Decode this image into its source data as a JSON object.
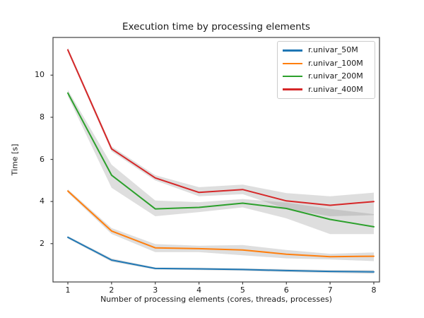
{
  "figure": {
    "background": "#ffffff",
    "spine_color": "#404040",
    "text_color": "#1a1a1a"
  },
  "chart_data": {
    "type": "line",
    "title": "Execution time by processing elements",
    "xlabel": "Number of processing elements (cores, threads, processes)",
    "ylabel": "Time [s]",
    "x": [
      1,
      2,
      3,
      4,
      5,
      6,
      7,
      8
    ],
    "xtick_labels": [
      "1",
      "2",
      "3",
      "4",
      "5",
      "6",
      "7",
      "8"
    ],
    "ytick_values": [
      2,
      4,
      6,
      8,
      10
    ],
    "ytick_labels": [
      "2",
      "4",
      "6",
      "8",
      "10"
    ],
    "xlim": [
      0.66,
      8.13
    ],
    "ylim": [
      0.18,
      11.79
    ],
    "grid": false,
    "legend": {
      "position": "upper right",
      "border_color": "#cccccc",
      "background": "#ffffff",
      "entries": [
        "r.univar_50M",
        "r.univar_100M",
        "r.univar_200M",
        "r.univar_400M"
      ]
    },
    "band": {
      "color": "#888888",
      "opacity": 0.28
    },
    "series": [
      {
        "name": "r.univar_50M",
        "color": "#1f77b4",
        "values": [
          2.3,
          1.22,
          0.82,
          0.8,
          0.77,
          0.72,
          0.68,
          0.66
        ],
        "lo": [
          2.24,
          1.14,
          0.77,
          0.74,
          0.71,
          0.65,
          0.61,
          0.57
        ],
        "hi": [
          2.36,
          1.3,
          0.87,
          0.86,
          0.83,
          0.79,
          0.75,
          0.75
        ]
      },
      {
        "name": "r.univar_100M",
        "color": "#ff7f0e",
        "values": [
          4.5,
          2.6,
          1.8,
          1.76,
          1.7,
          1.5,
          1.38,
          1.4
        ],
        "lo": [
          4.42,
          2.46,
          1.6,
          1.6,
          1.45,
          1.3,
          1.25,
          1.17
        ],
        "hi": [
          4.58,
          2.74,
          1.98,
          1.9,
          1.93,
          1.7,
          1.52,
          1.58
        ]
      },
      {
        "name": "r.univar_200M",
        "color": "#2ca02c",
        "values": [
          9.15,
          5.25,
          3.65,
          3.72,
          3.92,
          3.67,
          3.15,
          2.8
        ],
        "lo": [
          9.0,
          4.65,
          3.3,
          3.5,
          3.72,
          3.2,
          2.45,
          2.45
        ],
        "hi": [
          9.3,
          5.75,
          4.05,
          3.97,
          4.12,
          3.95,
          3.65,
          3.4
        ]
      },
      {
        "name": "r.univar_400M",
        "color": "#d62728",
        "values": [
          11.2,
          6.5,
          5.12,
          4.43,
          4.57,
          4.03,
          3.82,
          4.0
        ],
        "lo": [
          11.1,
          6.38,
          5.0,
          4.25,
          4.35,
          3.65,
          3.3,
          3.35
        ],
        "hi": [
          11.3,
          6.62,
          5.25,
          4.68,
          4.8,
          4.4,
          4.25,
          4.42
        ]
      }
    ]
  }
}
